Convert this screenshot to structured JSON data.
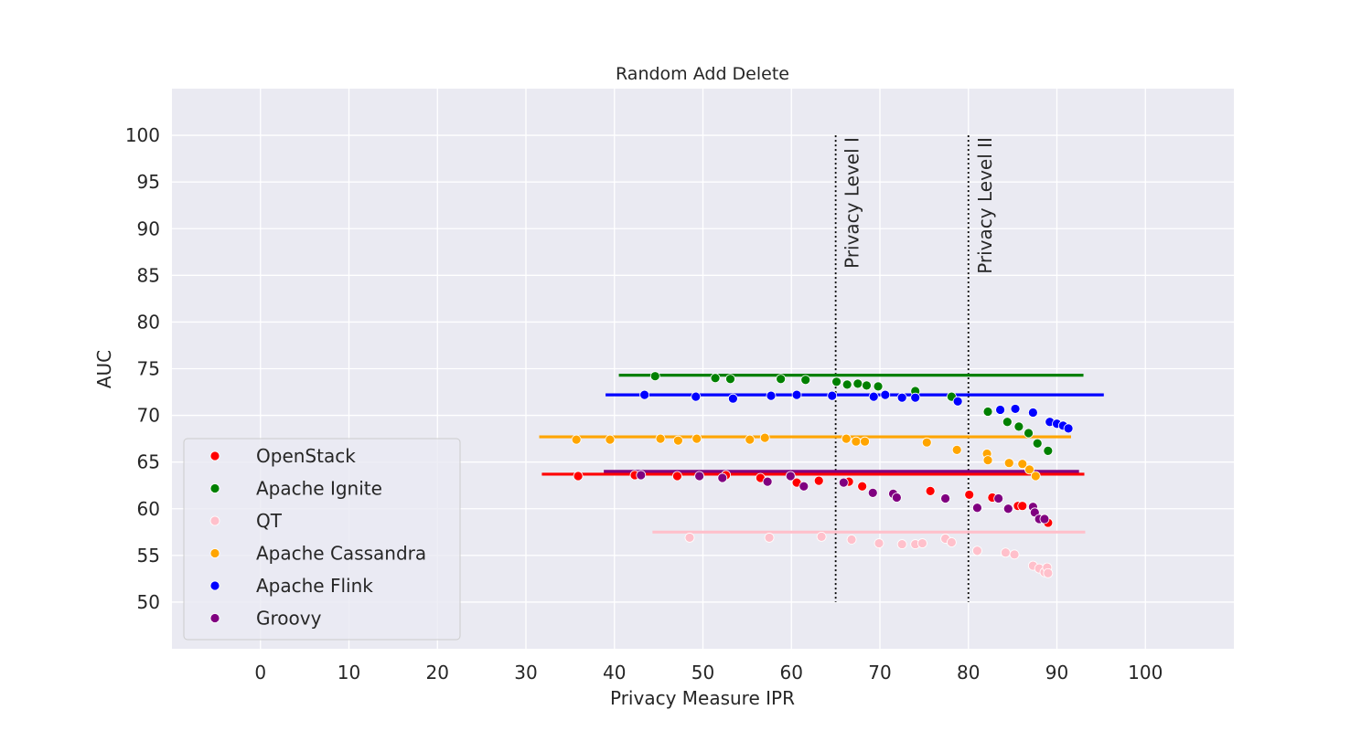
{
  "chart_data": {
    "type": "scatter",
    "title": "Random Add Delete",
    "xlabel": "Privacy Measure IPR",
    "ylabel": "AUC",
    "xlim": [
      -10,
      110
    ],
    "ylim": [
      45,
      105
    ],
    "xticks": [
      0,
      10,
      20,
      30,
      40,
      50,
      60,
      70,
      80,
      90,
      100
    ],
    "yticks": [
      50,
      55,
      60,
      65,
      70,
      75,
      80,
      85,
      90,
      95,
      100
    ],
    "grid": true,
    "legend_position": "lower-left",
    "annotations": [
      {
        "label": "Privacy Level I",
        "x": 65,
        "y_range": [
          50,
          100
        ],
        "style": "dotted"
      },
      {
        "label": "Privacy Level II",
        "x": 80,
        "y_range": [
          50,
          100
        ],
        "style": "dotted"
      }
    ],
    "series": [
      {
        "name": "OpenStack",
        "color": "#ff0000",
        "baseline": {
          "y": 63.7,
          "x_range": [
            31.8,
            93.1
          ]
        },
        "points": [
          [
            35.9,
            63.5
          ],
          [
            42.3,
            63.6
          ],
          [
            47.1,
            63.5
          ],
          [
            52.6,
            63.6
          ],
          [
            56.5,
            63.3
          ],
          [
            60.6,
            62.8
          ],
          [
            63.1,
            63.0
          ],
          [
            66.5,
            62.9
          ],
          [
            68.0,
            62.4
          ],
          [
            75.7,
            61.9
          ],
          [
            80.1,
            61.5
          ],
          [
            82.7,
            61.2
          ],
          [
            85.6,
            60.3
          ],
          [
            86.1,
            60.3
          ],
          [
            87.5,
            59.6
          ],
          [
            89.0,
            58.5
          ]
        ]
      },
      {
        "name": "Apache Ignite",
        "color": "#008000",
        "baseline": {
          "y": 74.3,
          "x_range": [
            40.5,
            93.0
          ]
        },
        "points": [
          [
            44.6,
            74.2
          ],
          [
            51.4,
            74.0
          ],
          [
            53.1,
            73.9
          ],
          [
            58.8,
            73.9
          ],
          [
            61.6,
            73.8
          ],
          [
            65.1,
            73.6
          ],
          [
            66.3,
            73.3
          ],
          [
            67.5,
            73.4
          ],
          [
            68.5,
            73.2
          ],
          [
            69.8,
            73.1
          ],
          [
            74.0,
            72.6
          ],
          [
            78.1,
            72.0
          ],
          [
            82.2,
            70.4
          ],
          [
            84.4,
            69.3
          ],
          [
            85.7,
            68.8
          ],
          [
            86.8,
            68.1
          ],
          [
            87.8,
            67.0
          ],
          [
            89.0,
            66.2
          ]
        ]
      },
      {
        "name": "QT",
        "color": "#ffc0cb",
        "baseline": {
          "y": 57.5,
          "x_range": [
            44.3,
            93.2
          ]
        },
        "points": [
          [
            48.5,
            56.9
          ],
          [
            57.5,
            56.9
          ],
          [
            63.4,
            57.0
          ],
          [
            66.8,
            56.7
          ],
          [
            69.9,
            56.3
          ],
          [
            72.5,
            56.2
          ],
          [
            74.0,
            56.2
          ],
          [
            74.8,
            56.3
          ],
          [
            77.4,
            56.8
          ],
          [
            78.1,
            56.4
          ],
          [
            81.0,
            55.5
          ],
          [
            84.2,
            55.3
          ],
          [
            85.2,
            55.1
          ],
          [
            87.3,
            53.9
          ],
          [
            88.0,
            53.6
          ],
          [
            88.6,
            53.2
          ],
          [
            88.9,
            53.7
          ],
          [
            89.0,
            53.1
          ]
        ]
      },
      {
        "name": "Apache Cassandra",
        "color": "#ffa500",
        "baseline": {
          "y": 67.7,
          "x_range": [
            31.5,
            91.6
          ]
        },
        "points": [
          [
            35.7,
            67.4
          ],
          [
            39.5,
            67.4
          ],
          [
            45.2,
            67.5
          ],
          [
            47.2,
            67.3
          ],
          [
            49.3,
            67.5
          ],
          [
            55.3,
            67.4
          ],
          [
            57.0,
            67.6
          ],
          [
            66.2,
            67.5
          ],
          [
            67.3,
            67.2
          ],
          [
            68.3,
            67.2
          ],
          [
            75.3,
            67.1
          ],
          [
            78.7,
            66.3
          ],
          [
            82.1,
            65.9
          ],
          [
            82.2,
            65.2
          ],
          [
            84.6,
            64.9
          ],
          [
            86.1,
            64.8
          ],
          [
            86.9,
            64.2
          ],
          [
            87.6,
            63.5
          ]
        ]
      },
      {
        "name": "Apache Flink",
        "color": "#0000ff",
        "baseline": {
          "y": 72.2,
          "x_range": [
            39.0,
            95.3
          ]
        },
        "points": [
          [
            43.4,
            72.2
          ],
          [
            49.2,
            72.0
          ],
          [
            53.4,
            71.8
          ],
          [
            57.7,
            72.1
          ],
          [
            60.6,
            72.2
          ],
          [
            64.6,
            72.1
          ],
          [
            69.3,
            72.0
          ],
          [
            70.6,
            72.2
          ],
          [
            72.5,
            71.9
          ],
          [
            74.0,
            71.9
          ],
          [
            78.8,
            71.5
          ],
          [
            83.6,
            70.6
          ],
          [
            85.3,
            70.7
          ],
          [
            87.3,
            70.3
          ],
          [
            89.2,
            69.3
          ],
          [
            90.0,
            69.1
          ],
          [
            90.7,
            68.9
          ],
          [
            91.3,
            68.6
          ]
        ]
      },
      {
        "name": "Groovy",
        "color": "#800080",
        "baseline": {
          "y": 64.0,
          "x_range": [
            38.8,
            92.5
          ]
        },
        "points": [
          [
            43.0,
            63.6
          ],
          [
            49.6,
            63.5
          ],
          [
            52.2,
            63.3
          ],
          [
            57.3,
            62.9
          ],
          [
            59.9,
            63.5
          ],
          [
            61.4,
            62.4
          ],
          [
            65.9,
            62.8
          ],
          [
            69.2,
            61.7
          ],
          [
            71.5,
            61.6
          ],
          [
            71.9,
            61.2
          ],
          [
            77.4,
            61.1
          ],
          [
            81.0,
            60.1
          ],
          [
            83.4,
            61.1
          ],
          [
            84.5,
            60.0
          ],
          [
            87.3,
            60.2
          ],
          [
            87.5,
            59.6
          ],
          [
            88.0,
            58.9
          ],
          [
            88.6,
            58.9
          ]
        ]
      }
    ]
  }
}
